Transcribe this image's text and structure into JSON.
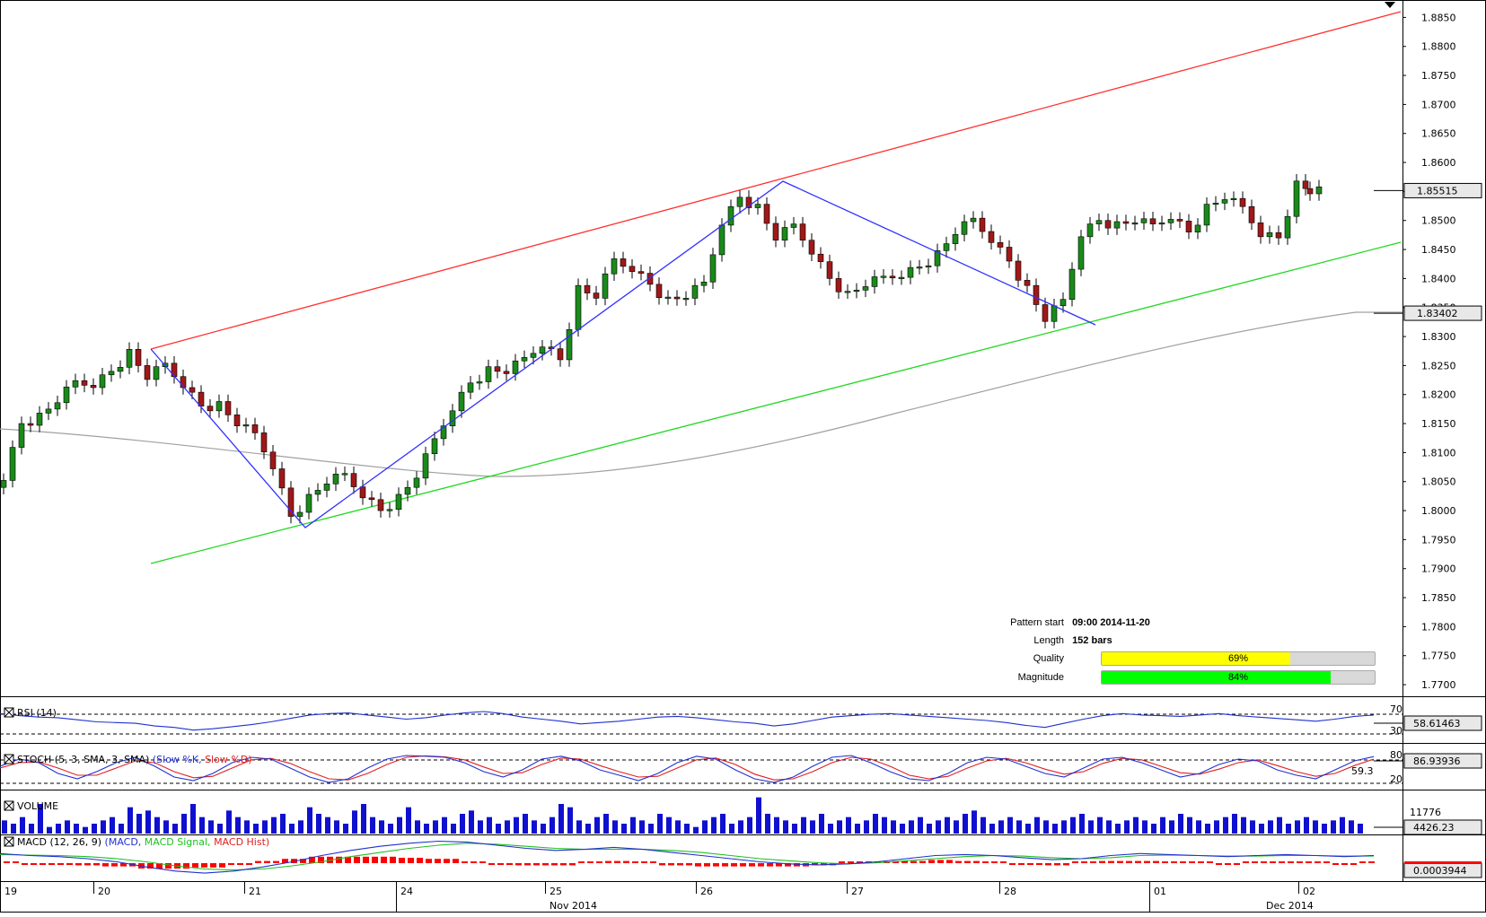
{
  "chart_data": {
    "type": "candlestick",
    "title": "",
    "price_axis": {
      "ticks": [
        "1.8850",
        "1.8800",
        "1.8750",
        "1.8700",
        "1.8650",
        "1.8600",
        "1.8550",
        "1.8500",
        "1.8450",
        "1.8400",
        "1.8350",
        "1.8300",
        "1.8250",
        "1.8200",
        "1.8150",
        "1.8100",
        "1.8050",
        "1.8000",
        "1.7950",
        "1.7900",
        "1.7850",
        "1.7800",
        "1.7750",
        "1.7700"
      ],
      "range": [
        1.768,
        1.888
      ],
      "last_price": "1.85515",
      "ma_value": "1.83402"
    },
    "time_axis": {
      "labels": [
        "19",
        "20",
        "21",
        "24",
        "25",
        "26",
        "27",
        "28",
        "01",
        "02"
      ],
      "month_labels": [
        "Nov 2014",
        "Dec 2014"
      ]
    },
    "pattern": {
      "start_label": "Pattern start",
      "start_value": "09:00 2014-11-20",
      "length_label": "Length",
      "length_value": "152 bars",
      "quality_label": "Quality",
      "quality_text": "69%",
      "quality": 0.69,
      "magnitude_label": "Magnitude",
      "magnitude_text": "84%",
      "magnitude": 0.84
    },
    "series": [
      {
        "name": "Close",
        "x": [
          0,
          20,
          40,
          60,
          80,
          100,
          120,
          140,
          160,
          180,
          200,
          220,
          240,
          260,
          280,
          300,
          320,
          340,
          360,
          380,
          400,
          420,
          440,
          460,
          480,
          500,
          520,
          540,
          560,
          580,
          600,
          620,
          640,
          660,
          680,
          700,
          720,
          740,
          760,
          780,
          800,
          820,
          840,
          860,
          880,
          900,
          920,
          940,
          960,
          980,
          1000,
          1020,
          1040,
          1060,
          1080,
          1100,
          1120,
          1140,
          1160,
          1180,
          1200,
          1220,
          1240,
          1260,
          1280,
          1300,
          1320,
          1340,
          1360,
          1380,
          1400,
          1420,
          1440,
          1455
        ],
        "values": [
          1.806,
          1.815,
          1.816,
          1.819,
          1.822,
          1.822,
          1.824,
          1.827,
          1.823,
          1.825,
          1.822,
          1.818,
          1.818,
          1.815,
          1.813,
          1.808,
          1.799,
          1.802,
          1.805,
          1.806,
          1.803,
          1.8,
          1.802,
          1.806,
          1.812,
          1.818,
          1.822,
          1.824,
          1.824,
          1.826,
          1.829,
          1.826,
          1.838,
          1.837,
          1.843,
          1.842,
          1.839,
          1.836,
          1.837,
          1.839,
          1.85,
          1.854,
          1.852,
          1.847,
          1.849,
          1.845,
          1.84,
          1.837,
          1.839,
          1.84,
          1.841,
          1.842,
          1.844,
          1.848,
          1.85,
          1.847,
          1.843,
          1.838,
          1.833,
          1.836,
          1.848,
          1.85,
          1.849,
          1.85,
          1.849,
          1.851,
          1.848,
          1.852,
          1.854,
          1.852,
          1.848,
          1.847,
          1.856,
          1.855
        ]
      }
    ],
    "indicators": {
      "rsi": {
        "label": "RSI (14)",
        "level_high": "70",
        "level_low": "30",
        "value": "58.61463",
        "values": [
          60,
          57,
          55,
          54,
          51,
          48,
          47,
          46,
          42,
          40,
          36,
          38,
          41,
          44,
          48,
          53,
          58,
          60,
          61,
          58,
          55,
          52,
          54,
          58,
          61,
          63,
          60,
          55,
          52,
          49,
          45,
          47,
          49,
          52,
          55,
          56,
          54,
          51,
          48,
          46,
          42,
          45,
          50,
          55,
          57,
          59,
          60,
          58,
          56,
          54,
          52,
          50,
          47,
          43,
          40,
          46,
          52,
          57,
          60,
          58,
          57,
          56,
          58,
          60,
          57,
          55,
          53,
          51,
          49,
          52,
          56,
          58
        ]
      },
      "stoch": {
        "label": "STOCH (5, 3, SMA, 3, SMA)",
        "k_name": "Slow %K",
        "d_name": "Slow %D",
        "level_high": "80",
        "level_low": "20",
        "value": "86.93936",
        "value2": "59.3",
        "k": [
          60,
          80,
          70,
          40,
          25,
          45,
          70,
          85,
          60,
          30,
          20,
          40,
          70,
          85,
          80,
          55,
          30,
          15,
          25,
          55,
          80,
          90,
          88,
          85,
          70,
          45,
          30,
          50,
          80,
          88,
          75,
          50,
          35,
          20,
          40,
          70,
          88,
          80,
          50,
          25,
          15,
          30,
          60,
          85,
          90,
          70,
          45,
          25,
          20,
          40,
          70,
          85,
          80,
          60,
          40,
          30,
          55,
          80,
          85,
          70,
          50,
          30,
          40,
          65,
          80,
          75,
          50,
          35,
          25,
          50,
          75,
          87
        ],
        "d": [
          55,
          70,
          72,
          55,
          35,
          35,
          55,
          75,
          70,
          45,
          28,
          32,
          55,
          78,
          82,
          68,
          45,
          25,
          22,
          40,
          65,
          85,
          89,
          86,
          78,
          58,
          40,
          42,
          65,
          83,
          80,
          62,
          45,
          30,
          32,
          55,
          78,
          83,
          65,
          38,
          22,
          25,
          45,
          70,
          85,
          80,
          60,
          35,
          25,
          32,
          55,
          75,
          82,
          70,
          52,
          38,
          45,
          68,
          82,
          78,
          60,
          42,
          38,
          52,
          70,
          78,
          62,
          45,
          32,
          40,
          62,
          80
        ]
      },
      "volume": {
        "label": "VOLUME",
        "top_value": "11776",
        "value": "4426.23",
        "values": [
          4,
          3,
          5,
          3,
          9,
          2,
          3,
          4,
          3,
          2,
          3,
          4,
          5,
          3,
          8,
          6,
          7,
          5,
          4,
          3,
          6,
          9,
          5,
          4,
          3,
          7,
          5,
          4,
          3,
          4,
          5,
          6,
          3,
          4,
          8,
          6,
          5,
          4,
          3,
          7,
          9,
          5,
          4,
          3,
          5,
          8,
          4,
          3,
          4,
          5,
          3,
          6,
          7,
          4,
          5,
          3,
          4,
          5,
          6,
          4,
          3,
          5,
          9,
          8,
          4,
          3,
          5,
          6,
          4,
          3,
          5,
          4,
          3,
          6,
          5,
          4,
          3,
          2,
          4,
          5,
          6,
          3,
          4,
          5,
          11,
          6,
          5,
          4,
          3,
          5,
          4,
          6,
          3,
          4,
          5,
          3,
          4,
          6,
          5,
          4,
          3,
          4,
          5,
          3,
          4,
          5,
          4,
          6,
          7,
          5,
          3,
          4,
          5,
          4,
          3,
          5,
          4,
          3,
          4,
          5,
          6,
          4,
          5,
          4,
          3,
          4,
          5,
          4,
          3,
          5,
          4,
          6,
          5,
          4,
          3,
          4,
          5,
          6,
          5,
          4,
          3,
          4,
          5,
          3,
          4,
          5,
          4,
          3,
          4,
          5,
          4,
          3
        ]
      },
      "macd": {
        "label": "MACD (12, 26, 9)",
        "macd_name": "MACD",
        "signal_name": "MACD Signal",
        "hist_name": "MACD Hist",
        "value": "0.0003944",
        "macd": [
          0.5,
          0.3,
          0.2,
          0.0,
          -0.3,
          -0.8,
          -1.2,
          -1.4,
          -1.2,
          -0.8,
          -0.3,
          0.3,
          0.8,
          1.2,
          1.5,
          1.7,
          1.6,
          1.3,
          1.0,
          0.8,
          0.9,
          1.1,
          0.9,
          0.6,
          0.3,
          0.0,
          -0.3,
          -0.5,
          -0.6,
          -0.5,
          -0.3,
          0.0,
          0.3,
          0.4,
          0.3,
          0.1,
          -0.1,
          0.0,
          0.3,
          0.5,
          0.4,
          0.3,
          0.2,
          0.3,
          0.4,
          0.3,
          0.2,
          0.3
        ],
        "signal": [
          0.4,
          0.35,
          0.3,
          0.2,
          0.0,
          -0.3,
          -0.7,
          -1.0,
          -1.1,
          -1.0,
          -0.7,
          -0.3,
          0.2,
          0.6,
          1.0,
          1.3,
          1.5,
          1.4,
          1.2,
          1.0,
          0.9,
          0.9,
          0.9,
          0.8,
          0.6,
          0.3,
          0.0,
          -0.2,
          -0.4,
          -0.5,
          -0.4,
          -0.2,
          0.0,
          0.2,
          0.3,
          0.25,
          0.1,
          0.0,
          0.1,
          0.3,
          0.35,
          0.3,
          0.25,
          0.25,
          0.3,
          0.3,
          0.25,
          0.25
        ]
      }
    }
  }
}
